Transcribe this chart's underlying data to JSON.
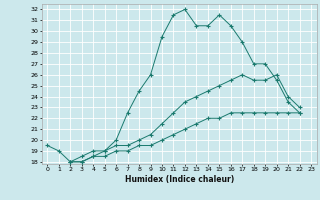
{
  "title": "",
  "xlabel": "Humidex (Indice chaleur)",
  "ylabel": "",
  "bg_color": "#cce8ec",
  "grid_color": "#ffffff",
  "line_color": "#1a7a6e",
  "xlim": [
    -0.5,
    23.5
  ],
  "ylim": [
    17.8,
    32.5
  ],
  "xticks": [
    0,
    1,
    2,
    3,
    4,
    5,
    6,
    7,
    8,
    9,
    10,
    11,
    12,
    13,
    14,
    15,
    16,
    17,
    18,
    19,
    20,
    21,
    22,
    23
  ],
  "yticks": [
    18,
    19,
    20,
    21,
    22,
    23,
    24,
    25,
    26,
    27,
    28,
    29,
    30,
    31,
    32
  ],
  "line1_x": [
    0,
    1,
    2,
    3,
    4,
    5,
    6,
    7,
    8,
    9,
    10,
    11,
    12,
    13,
    14,
    15,
    16,
    17,
    18,
    19,
    20,
    21,
    22
  ],
  "line1_y": [
    19.5,
    19.0,
    18.0,
    18.0,
    18.5,
    19.0,
    20.0,
    22.5,
    24.5,
    26.0,
    29.5,
    31.5,
    32.0,
    30.5,
    30.5,
    31.5,
    30.5,
    29.0,
    27.0,
    27.0,
    25.5,
    23.5,
    22.5
  ],
  "line2_x": [
    2,
    3,
    4,
    5,
    6,
    7,
    8,
    9,
    10,
    11,
    12,
    13,
    14,
    15,
    16,
    17,
    18,
    19,
    20,
    21,
    22
  ],
  "line2_y": [
    18.0,
    18.5,
    19.0,
    19.0,
    19.5,
    19.5,
    20.0,
    20.5,
    21.5,
    22.5,
    23.5,
    24.0,
    24.5,
    25.0,
    25.5,
    26.0,
    25.5,
    25.5,
    26.0,
    24.0,
    23.0
  ],
  "line3_x": [
    2,
    3,
    4,
    5,
    6,
    7,
    8,
    9,
    10,
    11,
    12,
    13,
    14,
    15,
    16,
    17,
    18,
    19,
    20,
    21,
    22
  ],
  "line3_y": [
    18.0,
    18.0,
    18.5,
    18.5,
    19.0,
    19.0,
    19.5,
    19.5,
    20.0,
    20.5,
    21.0,
    21.5,
    22.0,
    22.0,
    22.5,
    22.5,
    22.5,
    22.5,
    22.5,
    22.5,
    22.5
  ]
}
